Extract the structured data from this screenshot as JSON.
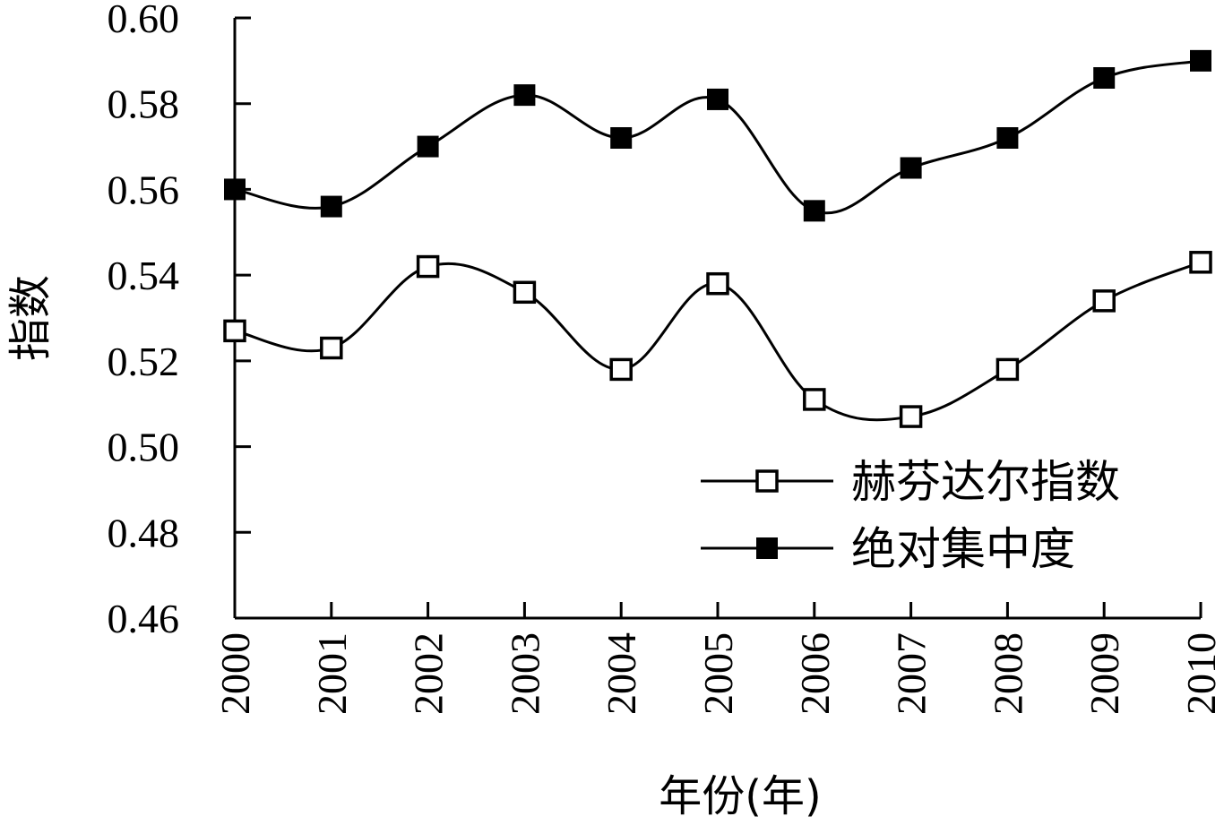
{
  "chart_data": {
    "type": "line",
    "xlabel": "年份(年)",
    "ylabel": "指数",
    "x": [
      "2000",
      "2001",
      "2002",
      "2003",
      "2004",
      "2005",
      "2006",
      "2007",
      "2008",
      "2009",
      "2010"
    ],
    "ylim": [
      0.46,
      0.6
    ],
    "yticks": [
      "0.60",
      "0.58",
      "0.56",
      "0.54",
      "0.52",
      "0.50",
      "0.48",
      "0.46"
    ],
    "grid": false,
    "legend_position": "bottom-right",
    "series": [
      {
        "name": "赫芬达尔指数",
        "marker": "hollow-square",
        "values": [
          0.527,
          0.523,
          0.542,
          0.536,
          0.518,
          0.538,
          0.511,
          0.507,
          0.518,
          0.534,
          0.543
        ]
      },
      {
        "name": "绝对集中度",
        "marker": "filled-square",
        "values": [
          0.56,
          0.556,
          0.57,
          0.582,
          0.572,
          0.581,
          0.555,
          0.565,
          0.572,
          0.586,
          0.59
        ]
      }
    ]
  }
}
